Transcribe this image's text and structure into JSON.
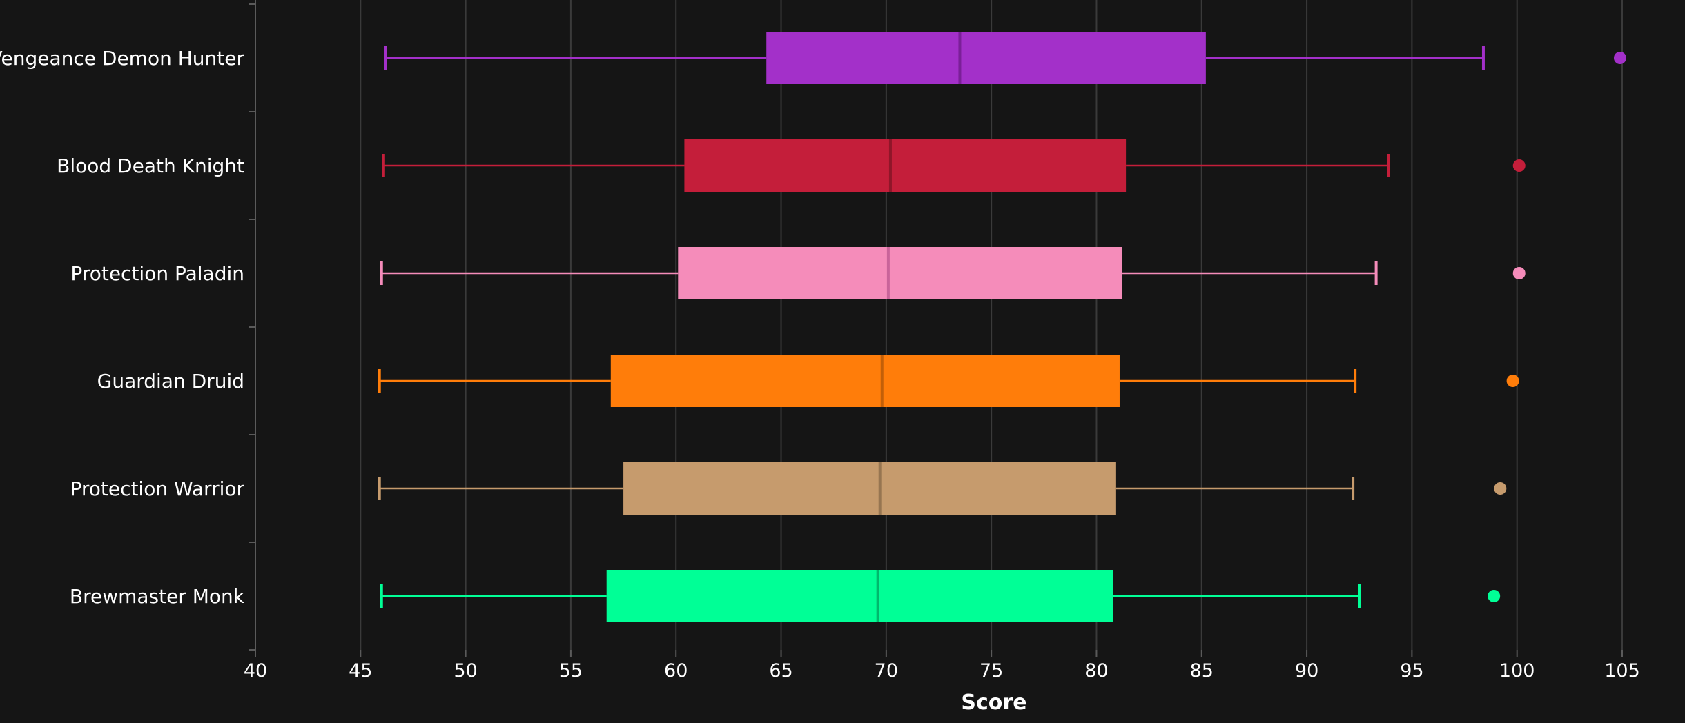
{
  "colors": {
    "background": "#151515",
    "gridline": "#3a3a3a",
    "axis": "#5a5a5a",
    "text": "#ffffff"
  },
  "chart_data": {
    "type": "boxplot",
    "orientation": "horizontal",
    "xlabel": "Score",
    "xlim": [
      40,
      106
    ],
    "xticks": [
      40,
      45,
      50,
      55,
      60,
      65,
      70,
      75,
      80,
      85,
      90,
      95,
      100,
      105
    ],
    "grid": true,
    "categories": [
      "Vengeance Demon Hunter",
      "Blood Death Knight",
      "Protection Paladin",
      "Guardian Druid",
      "Protection Warrior",
      "Brewmaster Monk"
    ],
    "series": [
      {
        "category": "Vengeance Demon Hunter",
        "color": "#A330C9",
        "median_color": "#7a1f98",
        "whisker_low": 46.2,
        "q1": 64.3,
        "median": 73.5,
        "q3": 85.2,
        "whisker_high": 98.4,
        "outliers": [
          104.9
        ]
      },
      {
        "category": "Blood Death Knight",
        "color": "#C41E3A",
        "median_color": "#8f1629",
        "whisker_low": 46.1,
        "q1": 60.4,
        "median": 70.2,
        "q3": 81.4,
        "whisker_high": 93.9,
        "outliers": [
          100.1
        ]
      },
      {
        "category": "Protection Paladin",
        "color": "#F58CBA",
        "median_color": "#c9649a",
        "whisker_low": 46.0,
        "q1": 60.1,
        "median": 70.1,
        "q3": 81.2,
        "whisker_high": 93.3,
        "outliers": [
          100.1
        ]
      },
      {
        "category": "Guardian Druid",
        "color": "#FF7D0A",
        "median_color": "#c25f08",
        "whisker_low": 45.9,
        "q1": 56.9,
        "median": 69.8,
        "q3": 81.1,
        "whisker_high": 92.3,
        "outliers": [
          99.8
        ]
      },
      {
        "category": "Protection Warrior",
        "color": "#C69B6D",
        "median_color": "#967551",
        "whisker_low": 45.9,
        "q1": 57.5,
        "median": 69.7,
        "q3": 80.9,
        "whisker_high": 92.2,
        "outliers": [
          99.2
        ]
      },
      {
        "category": "Brewmaster Monk",
        "color": "#00FF96",
        "median_color": "#00b86c",
        "whisker_low": 46.0,
        "q1": 56.7,
        "median": 69.6,
        "q3": 80.8,
        "whisker_high": 92.5,
        "outliers": [
          98.9
        ]
      }
    ]
  }
}
